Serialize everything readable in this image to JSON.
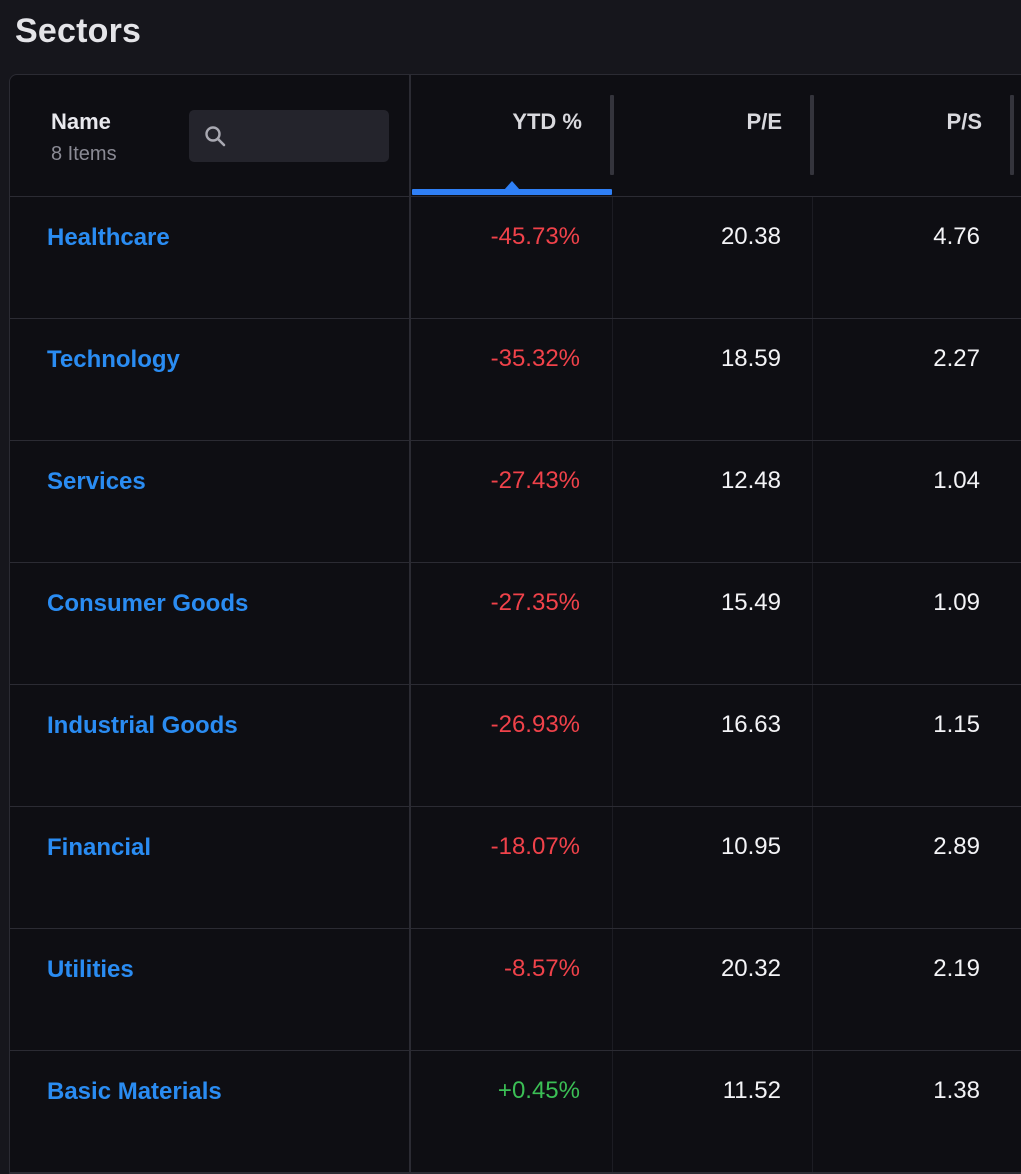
{
  "page": {
    "title": "Sectors"
  },
  "table": {
    "header": {
      "name_label": "Name",
      "item_count": "8 Items",
      "search_placeholder": "",
      "columns": [
        {
          "key": "ytd",
          "label": "YTD %",
          "sorted": true
        },
        {
          "key": "pe",
          "label": "P/E"
        },
        {
          "key": "ps",
          "label": "P/S"
        }
      ]
    },
    "rows": [
      {
        "name": "Healthcare",
        "ytd": "-45.73%",
        "pe": "20.38",
        "ps": "4.76",
        "trend": "neg"
      },
      {
        "name": "Technology",
        "ytd": "-35.32%",
        "pe": "18.59",
        "ps": "2.27",
        "trend": "neg"
      },
      {
        "name": "Services",
        "ytd": "-27.43%",
        "pe": "12.48",
        "ps": "1.04",
        "trend": "neg"
      },
      {
        "name": "Consumer Goods",
        "ytd": "-27.35%",
        "pe": "15.49",
        "ps": "1.09",
        "trend": "neg"
      },
      {
        "name": "Industrial Goods",
        "ytd": "-26.93%",
        "pe": "16.63",
        "ps": "1.15",
        "trend": "neg"
      },
      {
        "name": "Financial",
        "ytd": "-18.07%",
        "pe": "10.95",
        "ps": "2.89",
        "trend": "neg"
      },
      {
        "name": "Utilities",
        "ytd": "-8.57%",
        "pe": "20.32",
        "ps": "2.19",
        "trend": "neg"
      },
      {
        "name": "Basic Materials",
        "ytd": "+0.45%",
        "pe": "11.52",
        "ps": "1.38",
        "trend": "pos"
      }
    ]
  },
  "colors": {
    "accent": "#2f7ff5",
    "link": "#2a8cf2",
    "negative": "#f0424a",
    "positive": "#3bbf55",
    "background": "#0e0e13"
  },
  "icons": {
    "search": "search-icon"
  }
}
